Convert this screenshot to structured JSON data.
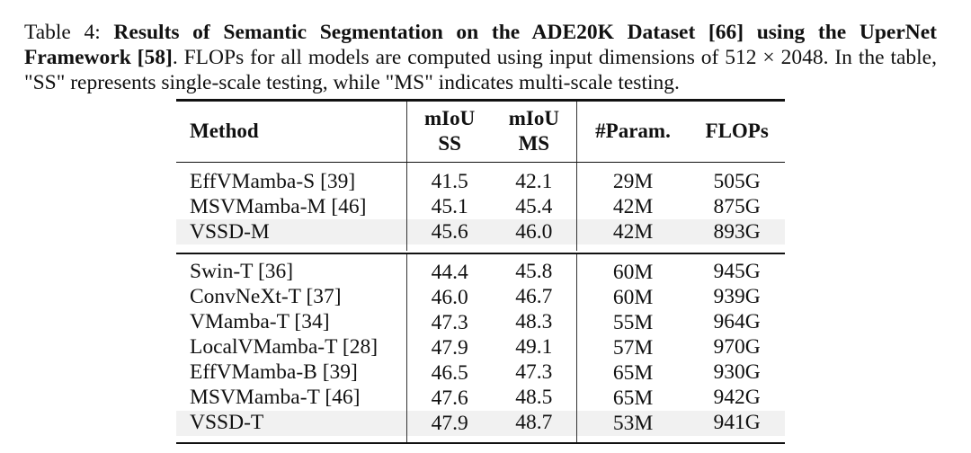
{
  "caption": {
    "label": "Table 4:",
    "title": "Results of Semantic Segmentation on the ADE20K Dataset [66] using the UperNet Framework [58]",
    "text": ". FLOPs for all models are computed using input dimensions of 512 × 2048. In the table, \"SS\" represents single-scale testing, while \"MS\" indicates multi-scale testing."
  },
  "table": {
    "headers": {
      "method": "Method",
      "miou_ss_top": "mIoU",
      "miou_ss_bottom": "SS",
      "miou_ms_top": "mIoU",
      "miou_ms_bottom": "MS",
      "params": "#Param.",
      "flops": "FLOPs"
    },
    "group1": [
      {
        "method": "EffVMamba-S [39]",
        "ss": "41.5",
        "ms": "42.1",
        "params": "29M",
        "flops": "505G"
      },
      {
        "method": "MSVMamba-M [46]",
        "ss": "45.1",
        "ms": "45.4",
        "params": "42M",
        "flops": "875G"
      },
      {
        "method": "VSSD-M",
        "ss": "45.6",
        "ms": "46.0",
        "params": "42M",
        "flops": "893G"
      }
    ],
    "group2": [
      {
        "method": "Swin-T [36]",
        "ss": "44.4",
        "ms": "45.8",
        "params": "60M",
        "flops": "945G"
      },
      {
        "method": "ConvNeXt-T [37]",
        "ss": "46.0",
        "ms": "46.7",
        "params": "60M",
        "flops": "939G"
      },
      {
        "method": "VMamba-T [34]",
        "ss": "47.3",
        "ms": "48.3",
        "params": "55M",
        "flops": "964G"
      },
      {
        "method": "LocalVMamba-T [28]",
        "ss": "47.9",
        "ms": "49.1",
        "params": "57M",
        "flops": "970G"
      },
      {
        "method": "EffVMamba-B [39]",
        "ss": "46.5",
        "ms": "47.3",
        "params": "65M",
        "flops": "930G"
      },
      {
        "method": "MSVMamba-T [46]",
        "ss": "47.6",
        "ms": "48.5",
        "params": "65M",
        "flops": "942G"
      },
      {
        "method": "VSSD-T",
        "ss": "47.9",
        "ms": "48.7",
        "params": "53M",
        "flops": "941G"
      }
    ]
  }
}
